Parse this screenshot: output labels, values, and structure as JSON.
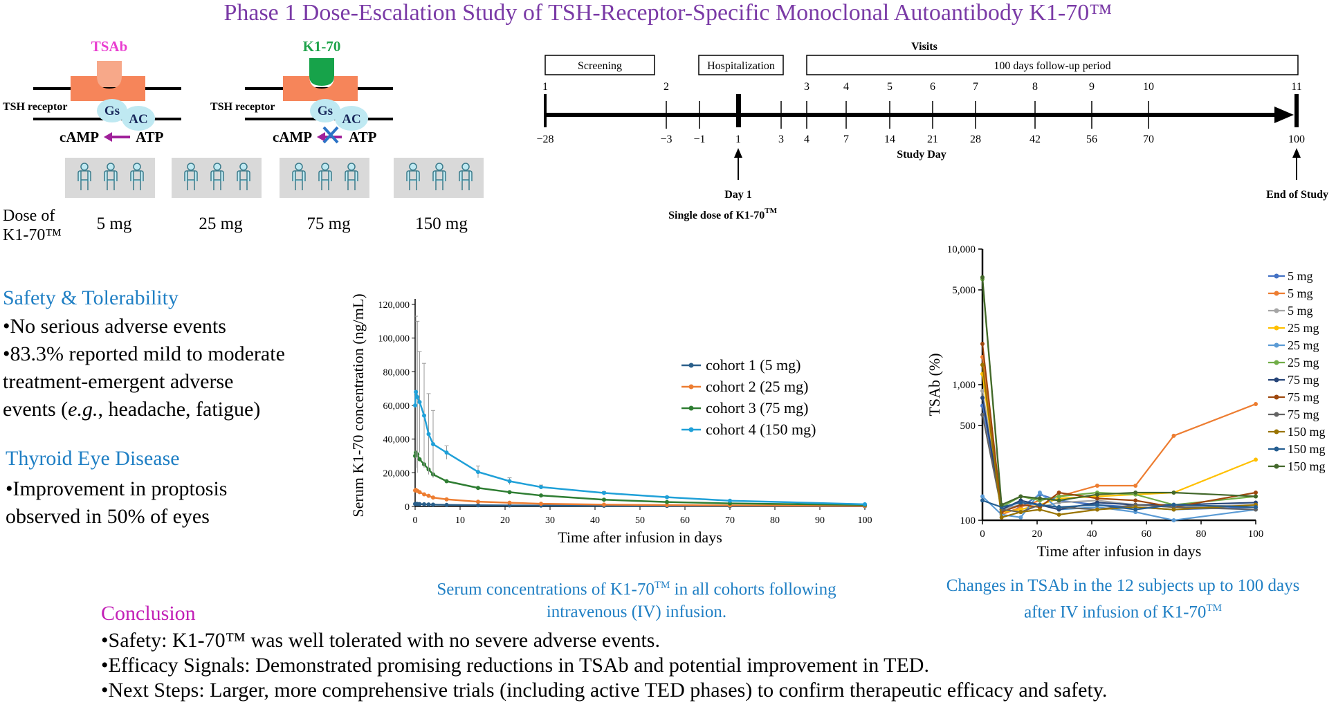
{
  "title": "Phase 1 Dose-Escalation Study of  TSH-Receptor-Specific Monoclonal Autoantibody K1-70™",
  "mechanism": {
    "left": {
      "antibody": "TSAb",
      "receptor": "TSH receptor",
      "gs": "Gs",
      "ac": "AC",
      "camp": "cAMP",
      "atp": "ATP"
    },
    "right": {
      "antibody": "K1-70",
      "receptor": "TSH receptor",
      "gs": "Gs",
      "ac": "AC",
      "camp": "cAMP",
      "atp": "ATP"
    },
    "colors": {
      "tsab": "#e93dd0",
      "k170": "#1ea34a",
      "receptor": "#f6855a",
      "gsac": "#bfe9f2",
      "arrow": "#a0209a",
      "block": "#2b73c6"
    }
  },
  "cohorts": {
    "dose_label_line1": "Dose of",
    "dose_label_line2": "K1-70™",
    "doses": [
      "5 mg",
      "25 mg",
      "75 mg",
      "150 mg"
    ],
    "subjects_per_cohort": 3
  },
  "timeline": {
    "periods": {
      "screening": "Screening",
      "hospitalization": "Hospitalization",
      "visits": "Visits",
      "followup": "100 days follow-up period"
    },
    "visit_numbers": [
      "1",
      "2",
      "3",
      "4",
      "5",
      "6",
      "7",
      "8",
      "9",
      "10",
      "11"
    ],
    "visit_days": [
      -28,
      -3,
      4,
      7,
      14,
      21,
      28,
      42,
      56,
      70,
      100
    ],
    "day_labels": [
      "−28",
      "−3",
      "−1",
      "1",
      "3",
      "4",
      "7",
      "14",
      "21",
      "28",
      "42",
      "56",
      "70",
      "100"
    ],
    "axis_label": "Study Day",
    "day1_label": "Day 1",
    "single_dose_label": "Single dose of K1-70",
    "single_dose_tm": "TM",
    "end_label": "End of Study"
  },
  "safety": {
    "heading": "Safety & Tolerability",
    "bullets": [
      "•No serious adverse events",
      "•83.3% reported mild to moderate",
      "treatment-emergent adverse"
    ],
    "last_line_pre": "events (",
    "last_line_eg": "e.g.",
    "last_line_post": ", headache, fatigue)"
  },
  "ted": {
    "heading": "Thyroid Eye Disease",
    "bullets": [
      "•Improvement in proptosis",
      "observed in 50% of eyes"
    ]
  },
  "captions": {
    "pk_line1_pre": "Serum concentrations of K1-70",
    "pk_line1_tm": "TM",
    "pk_line1_post": " in all cohorts following",
    "pk_line2": "intravenous (IV) infusion.",
    "tsab_line1": "Changes in TSAb in the 12 subjects up to 100 days",
    "tsab_line2_pre": "after IV infusion of K1-70",
    "tsab_line2_tm": "TM"
  },
  "conclusion": {
    "heading": "Conclusion",
    "lines": [
      "•Safety: K1-70™ was well tolerated with no severe adverse events.",
      "•Efficacy Signals: Demonstrated promising reductions in TSAb and potential improvement in TED.",
      "•Next Steps: Larger, more comprehensive trials (including active TED phases) to confirm therapeutic efficacy and safety."
    ]
  },
  "chart_data": [
    {
      "type": "line",
      "xlabel": "Time after infusion in days",
      "ylabel": "Serum K1-70 concentration (ng/mL)",
      "xlim": [
        0,
        100
      ],
      "ylim": [
        0,
        120000
      ],
      "xticks": [
        0,
        10,
        20,
        30,
        40,
        50,
        60,
        70,
        80,
        90,
        100
      ],
      "yticks": [
        0,
        20000,
        40000,
        60000,
        80000,
        100000,
        120000
      ],
      "ytick_labels": [
        "0",
        "20,000",
        "40,000",
        "60,000",
        "80,000",
        "100,000",
        "120,000"
      ],
      "legend_position": "right",
      "series": [
        {
          "name": "cohort 1 (5 mg)",
          "color": "#2a5f8a",
          "x": [
            0,
            0.17,
            0.5,
            1,
            2,
            3,
            4,
            7,
            14,
            21,
            28,
            42,
            56,
            70,
            100
          ],
          "y": [
            1500,
            1600,
            1500,
            1400,
            1300,
            1200,
            1100,
            900,
            700,
            600,
            500,
            400,
            300,
            200,
            100
          ],
          "err": [
            0,
            0,
            0,
            0,
            0,
            0,
            0,
            0,
            0,
            0,
            0,
            0,
            0,
            0,
            0
          ]
        },
        {
          "name": "cohort 2 (25 mg)",
          "color": "#ed7d31",
          "x": [
            0,
            0.17,
            0.5,
            1,
            2,
            3,
            4,
            7,
            14,
            21,
            28,
            42,
            56,
            70,
            100
          ],
          "y": [
            9500,
            9800,
            9200,
            8500,
            7200,
            6300,
            5300,
            4200,
            2800,
            2200,
            1600,
            1100,
            800,
            600,
            300
          ],
          "err": [
            0,
            0,
            0,
            0,
            0,
            0,
            0,
            0,
            0,
            0,
            0,
            0,
            0,
            0,
            0
          ]
        },
        {
          "name": "cohort 3 (75 mg)",
          "color": "#2e7d32",
          "x": [
            0,
            0.17,
            0.5,
            1,
            2,
            3,
            4,
            7,
            14,
            21,
            28,
            42,
            56,
            70,
            100
          ],
          "y": [
            30000,
            32000,
            31000,
            28000,
            25000,
            22000,
            19000,
            15000,
            11000,
            8500,
            6500,
            4000,
            2600,
            1800,
            900
          ],
          "err": [
            0,
            0,
            0,
            0,
            0,
            0,
            0,
            0,
            0,
            0,
            0,
            0,
            0,
            0,
            0
          ]
        },
        {
          "name": "cohort 4 (150 mg)",
          "color": "#1fa0d8",
          "x": [
            0,
            0.17,
            0.5,
            1,
            2,
            3,
            4,
            7,
            14,
            21,
            28,
            42,
            56,
            70,
            100
          ],
          "y": [
            60000,
            68000,
            65000,
            62000,
            54000,
            43000,
            37000,
            32000,
            20500,
            15000,
            11500,
            8000,
            5500,
            3400,
            1300
          ],
          "err": [
            0,
            45000,
            45000,
            30000,
            31000,
            24000,
            20000,
            4000,
            3500,
            2000,
            1200,
            800,
            500,
            300,
            200
          ]
        }
      ]
    },
    {
      "type": "line",
      "xlabel": "Time after infusion in days",
      "ylabel": "TSAb (%)",
      "yscale": "log",
      "xlim": [
        0,
        100
      ],
      "ylim": [
        100,
        10000
      ],
      "xticks": [
        0,
        20,
        40,
        60,
        80,
        100
      ],
      "yticks": [
        100,
        500,
        1000,
        5000,
        10000
      ],
      "ytick_labels": [
        "100",
        "500",
        "1,000",
        "5,000",
        "10,000"
      ],
      "legend_position": "right",
      "series": [
        {
          "name": "5 mg",
          "color": "#4472c4",
          "x": [
            0,
            7,
            14,
            21,
            28,
            42,
            56,
            70,
            100
          ],
          "y": [
            700,
            130,
            125,
            155,
            140,
            130,
            125,
            120,
            125
          ]
        },
        {
          "name": "5 mg",
          "color": "#ed7d31",
          "x": [
            0,
            7,
            14,
            21,
            28,
            42,
            56,
            70,
            100
          ],
          "y": [
            1600,
            110,
            125,
            140,
            150,
            180,
            180,
            420,
            720
          ]
        },
        {
          "name": "5 mg",
          "color": "#a5a5a5",
          "x": [
            0,
            7,
            14,
            21,
            28,
            42,
            56,
            70,
            100
          ],
          "y": [
            900,
            120,
            130,
            125,
            135,
            140,
            130,
            125,
            130
          ]
        },
        {
          "name": "25 mg",
          "color": "#ffc000",
          "x": [
            0,
            7,
            14,
            21,
            28,
            42,
            56,
            70,
            100
          ],
          "y": [
            1200,
            115,
            120,
            130,
            145,
            150,
            155,
            160,
            280
          ]
        },
        {
          "name": "25 mg",
          "color": "#5b9bd5",
          "x": [
            0,
            7,
            14,
            21,
            28,
            42,
            56,
            70,
            100
          ],
          "y": [
            150,
            110,
            105,
            160,
            120,
            125,
            115,
            100,
            120
          ]
        },
        {
          "name": "25 mg",
          "color": "#70ad47",
          "x": [
            0,
            7,
            14,
            21,
            28,
            42,
            56,
            70,
            100
          ],
          "y": [
            6000,
            125,
            150,
            140,
            150,
            160,
            155,
            130,
            150
          ]
        },
        {
          "name": "75 mg",
          "color": "#264478",
          "x": [
            0,
            7,
            14,
            21,
            28,
            42,
            56,
            70,
            100
          ],
          "y": [
            800,
            120,
            140,
            130,
            120,
            135,
            130,
            130,
            135
          ]
        },
        {
          "name": "75 mg",
          "color": "#9e480e",
          "x": [
            0,
            7,
            14,
            21,
            28,
            42,
            56,
            70,
            100
          ],
          "y": [
            2000,
            115,
            130,
            125,
            160,
            145,
            140,
            125,
            160
          ]
        },
        {
          "name": "75 mg",
          "color": "#636363",
          "x": [
            0,
            7,
            14,
            21,
            28,
            42,
            56,
            70,
            100
          ],
          "y": [
            600,
            120,
            115,
            130,
            125,
            120,
            130,
            125,
            120
          ]
        },
        {
          "name": "150 mg",
          "color": "#997300",
          "x": [
            0,
            7,
            14,
            21,
            28,
            42,
            56,
            70,
            100
          ],
          "y": [
            1400,
            105,
            115,
            120,
            110,
            120,
            125,
            120,
            130
          ]
        },
        {
          "name": "150 mg",
          "color": "#255e91",
          "x": [
            0,
            7,
            14,
            21,
            28,
            42,
            56,
            70,
            100
          ],
          "y": [
            140,
            125,
            135,
            130,
            125,
            130,
            120,
            130,
            125
          ]
        },
        {
          "name": "150 mg",
          "color": "#43682b",
          "x": [
            0,
            7,
            14,
            21,
            28,
            42,
            56,
            70,
            100
          ],
          "y": [
            6200,
            130,
            150,
            145,
            140,
            155,
            160,
            160,
            150
          ]
        }
      ]
    }
  ]
}
